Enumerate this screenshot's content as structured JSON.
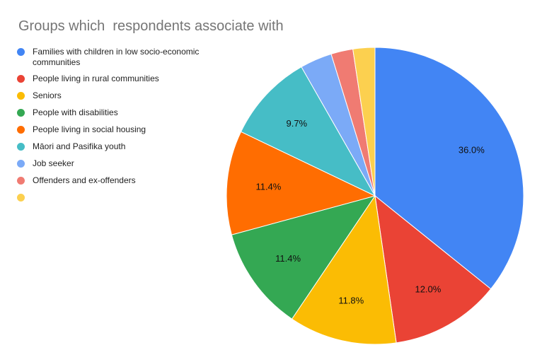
{
  "chart_data": {
    "type": "pie",
    "title": "Groups which  respondents associate with",
    "start_angle_deg": 0,
    "direction": "clockwise",
    "slices": [
      {
        "label": "Families with children in low socio-economic communities",
        "value": 36.0,
        "value_label": "36.0%",
        "color": "#4285f4"
      },
      {
        "label": "People living in rural communities",
        "value": 12.0,
        "value_label": "12.0%",
        "color": "#ea4335"
      },
      {
        "label": "Seniors",
        "value": 11.8,
        "value_label": "11.8%",
        "color": "#fbbc04"
      },
      {
        "label": "People with disabilities",
        "value": 11.4,
        "value_label": "11.4%",
        "color": "#34a853"
      },
      {
        "label": "People living in social housing",
        "value": 11.4,
        "value_label": "11.4%",
        "color": "#ff6d01"
      },
      {
        "label": "Māori and Pasifika youth",
        "value": 9.7,
        "value_label": "9.7%",
        "color": "#46bdc6"
      },
      {
        "label": "Job seeker",
        "value": 3.5,
        "value_label": "",
        "color": "#7baaf7"
      },
      {
        "label": "Offenders and ex-offenders",
        "value": 2.4,
        "value_label": "",
        "color": "#f07b72"
      },
      {
        "label": "",
        "value": 2.4,
        "value_label": "",
        "color": "#fcd04f"
      }
    ],
    "legend_position": "left"
  }
}
